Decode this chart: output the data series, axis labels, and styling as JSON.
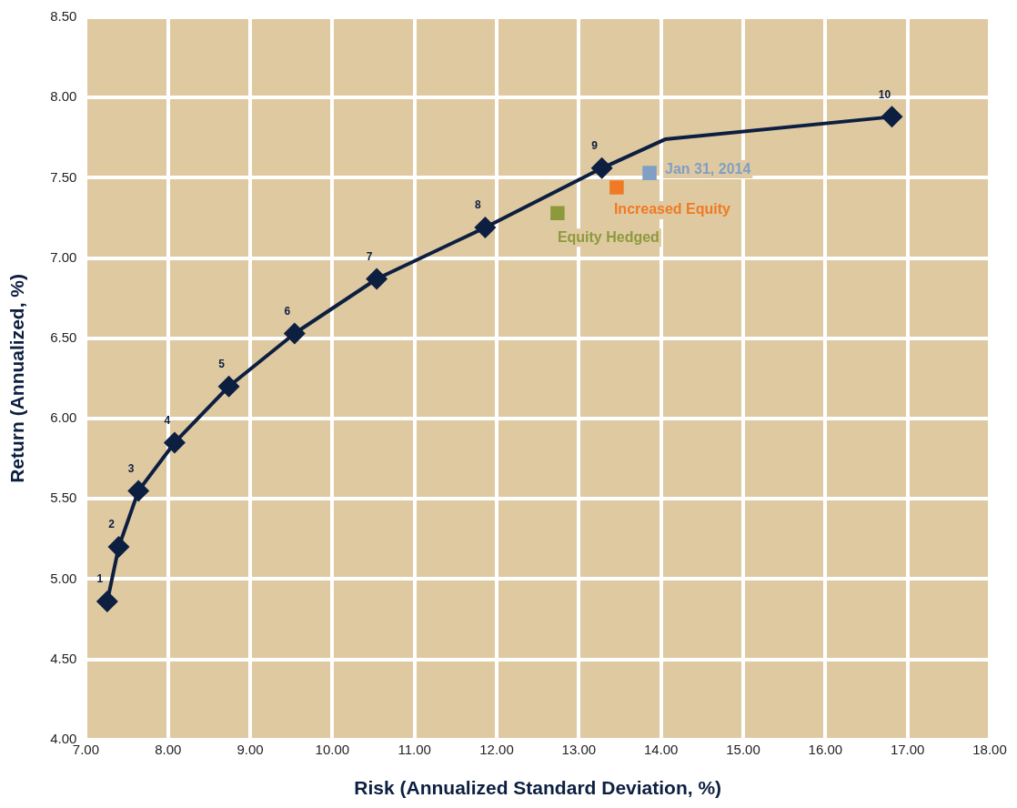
{
  "chart_data": {
    "type": "line",
    "xlabel": "Risk (Annualized Standard Deviation, %)",
    "ylabel": "Return (Annualized, %)",
    "xlim": [
      7,
      18
    ],
    "ylim": [
      4,
      8.5
    ],
    "xticks": [
      {
        "value": 7,
        "label": "7.00"
      },
      {
        "value": 8,
        "label": "8.00"
      },
      {
        "value": 9,
        "label": "9.00"
      },
      {
        "value": 10,
        "label": "10.00"
      },
      {
        "value": 11,
        "label": "11.00"
      },
      {
        "value": 12,
        "label": "12.00"
      },
      {
        "value": 13,
        "label": "13.00"
      },
      {
        "value": 14,
        "label": "14.00"
      },
      {
        "value": 15,
        "label": "15.00"
      },
      {
        "value": 16,
        "label": "16.00"
      },
      {
        "value": 17,
        "label": "17.00"
      },
      {
        "value": 18,
        "label": "18.00"
      }
    ],
    "yticks": [
      {
        "value": 4,
        "label": "4.00"
      },
      {
        "value": 4.5,
        "label": "4.50"
      },
      {
        "value": 5,
        "label": "5.00"
      },
      {
        "value": 5.5,
        "label": "5.50"
      },
      {
        "value": 6,
        "label": "6.00"
      },
      {
        "value": 6.5,
        "label": "6.50"
      },
      {
        "value": 7,
        "label": "7.00"
      },
      {
        "value": 7.5,
        "label": "7.50"
      },
      {
        "value": 8,
        "label": "8.00"
      },
      {
        "value": 8.5,
        "label": "8.50"
      }
    ],
    "annotations": [
      {
        "text": "1",
        "x": 7.26,
        "y": 4.86
      },
      {
        "text": "2",
        "x": 7.4,
        "y": 5.2
      },
      {
        "text": "3",
        "x": 7.64,
        "y": 5.55
      },
      {
        "text": "4",
        "x": 8.08,
        "y": 5.85
      },
      {
        "text": "5",
        "x": 8.74,
        "y": 6.2
      },
      {
        "text": "6",
        "x": 9.54,
        "y": 6.53
      },
      {
        "text": "7",
        "x": 10.54,
        "y": 6.87
      },
      {
        "text": "8",
        "x": 11.86,
        "y": 7.19
      },
      {
        "text": "9",
        "x": 13.28,
        "y": 7.56
      },
      {
        "text": "10",
        "x": 16.81,
        "y": 7.88
      }
    ],
    "grid": true,
    "legend": false,
    "line_style": "solid",
    "series": [
      {
        "marker": "none",
        "color": "#0d1f40",
        "x": [
          7.26,
          7.4,
          7.64,
          8.08,
          8.74,
          9.54,
          10.54,
          11.86,
          13.28,
          14.05,
          16.81
        ],
        "values": [
          4.86,
          5.2,
          5.55,
          5.85,
          6.2,
          6.53,
          6.87,
          7.19,
          7.56,
          7.74,
          7.88
        ]
      },
      {
        "type": "scatter",
        "marker": "diamond",
        "color": "#0d1f40",
        "x": [
          7.26,
          7.4,
          7.64,
          8.08,
          8.74,
          9.54,
          10.54,
          11.86,
          13.28,
          16.81
        ],
        "values": [
          4.86,
          5.2,
          5.55,
          5.85,
          6.2,
          6.53,
          6.87,
          7.19,
          7.56,
          7.88
        ]
      },
      {
        "type": "scatter",
        "marker": "square",
        "name": "Jan 31, 2014",
        "color": "#7f9fc4",
        "x": [
          13.86
        ],
        "values": [
          7.53
        ]
      },
      {
        "type": "scatter",
        "marker": "square",
        "name": "Increased Equity",
        "color": "#f07a23",
        "x": [
          13.46
        ],
        "values": [
          7.44
        ]
      },
      {
        "type": "scatter",
        "marker": "square",
        "name": "Equity Hedged",
        "color": "#8c9a3c",
        "x": [
          12.74
        ],
        "values": [
          7.28
        ]
      }
    ]
  }
}
